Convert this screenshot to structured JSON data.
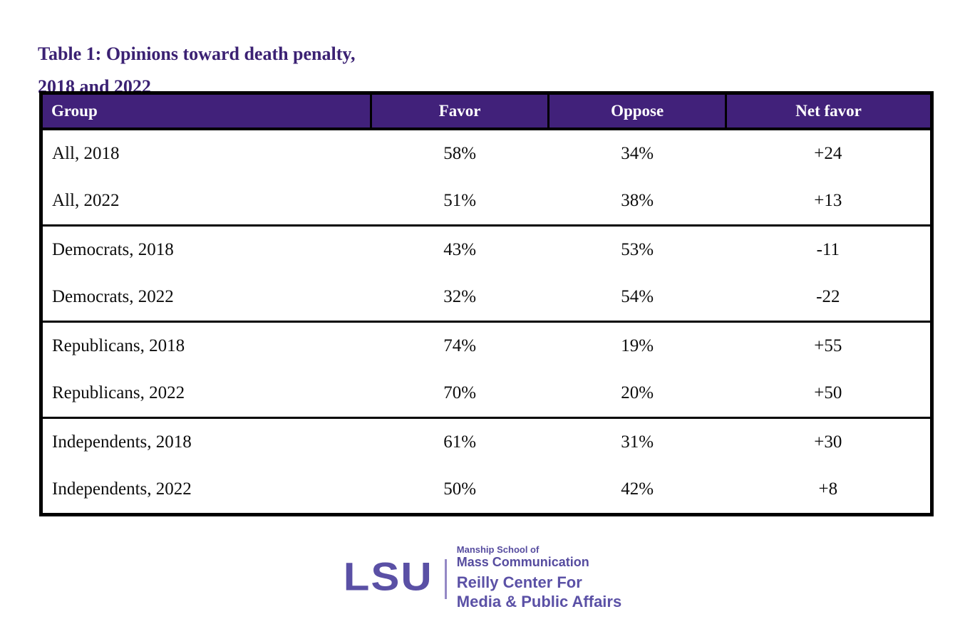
{
  "title": {
    "line1": "Table 1: Opinions toward death penalty,",
    "line2": "2018 and 2022"
  },
  "table": {
    "columns": [
      "Group",
      "Favor",
      "Oppose",
      "Net favor"
    ],
    "rows": [
      {
        "group": "All, 2018",
        "favor": "58%",
        "oppose": "34%",
        "net_favor": "+24",
        "section_end": false
      },
      {
        "group": "All, 2022",
        "favor": "51%",
        "oppose": "38%",
        "net_favor": "+13",
        "section_end": true
      },
      {
        "group": "Democrats, 2018",
        "favor": "43%",
        "oppose": "53%",
        "net_favor": "-11",
        "section_end": false
      },
      {
        "group": "Democrats, 2022",
        "favor": "32%",
        "oppose": "54%",
        "net_favor": "-22",
        "section_end": true
      },
      {
        "group": "Republicans, 2018",
        "favor": "74%",
        "oppose": "19%",
        "net_favor": "+55",
        "section_end": false
      },
      {
        "group": "Republicans, 2022",
        "favor": "70%",
        "oppose": "20%",
        "net_favor": "+50",
        "section_end": true
      },
      {
        "group": "Independents, 2018",
        "favor": "61%",
        "oppose": "31%",
        "net_favor": "+30",
        "section_end": false
      },
      {
        "group": "Independents, 2022",
        "favor": "50%",
        "oppose": "42%",
        "net_favor": "+8",
        "section_end": false
      }
    ]
  },
  "footer": {
    "logo_text": "LSU",
    "org_lines": [
      "Manship School of",
      "Mass Communication",
      "Reilly Center For",
      "Media & Public Affairs"
    ]
  },
  "colors": {
    "header_bg": "#41217a",
    "title_text": "#3b2173",
    "lsu_purple": "#5a50a5",
    "table_border": "#000000"
  },
  "chart_data": {
    "type": "table",
    "title": "Table 1: Opinions toward death penalty, 2018 and 2022",
    "columns": [
      "Group",
      "Favor",
      "Oppose",
      "Net favor"
    ],
    "rows": [
      [
        "All, 2018",
        "58%",
        "34%",
        "+24"
      ],
      [
        "All, 2022",
        "51%",
        "38%",
        "+13"
      ],
      [
        "Democrats, 2018",
        "43%",
        "53%",
        "-11"
      ],
      [
        "Democrats, 2022",
        "32%",
        "54%",
        "-22"
      ],
      [
        "Republicans, 2018",
        "74%",
        "19%",
        "+55"
      ],
      [
        "Republicans, 2022",
        "70%",
        "20%",
        "+50"
      ],
      [
        "Independents, 2018",
        "61%",
        "31%",
        "+30"
      ],
      [
        "Independents, 2022",
        "50%",
        "42%",
        "+8"
      ]
    ],
    "series": [
      {
        "name": "Favor",
        "values": [
          58,
          51,
          43,
          32,
          74,
          70,
          61,
          50
        ]
      },
      {
        "name": "Oppose",
        "values": [
          34,
          38,
          53,
          54,
          19,
          20,
          31,
          42
        ]
      },
      {
        "name": "Net favor",
        "values": [
          24,
          13,
          -11,
          -22,
          55,
          50,
          30,
          8
        ]
      }
    ],
    "categories": [
      "All, 2018",
      "All, 2022",
      "Democrats, 2018",
      "Democrats, 2022",
      "Republicans, 2018",
      "Republicans, 2022",
      "Independents, 2018",
      "Independents, 2022"
    ],
    "attribution_visible": "LSU | Manship School of Mass Communication — Reilly Center For Media & Public Affairs"
  }
}
